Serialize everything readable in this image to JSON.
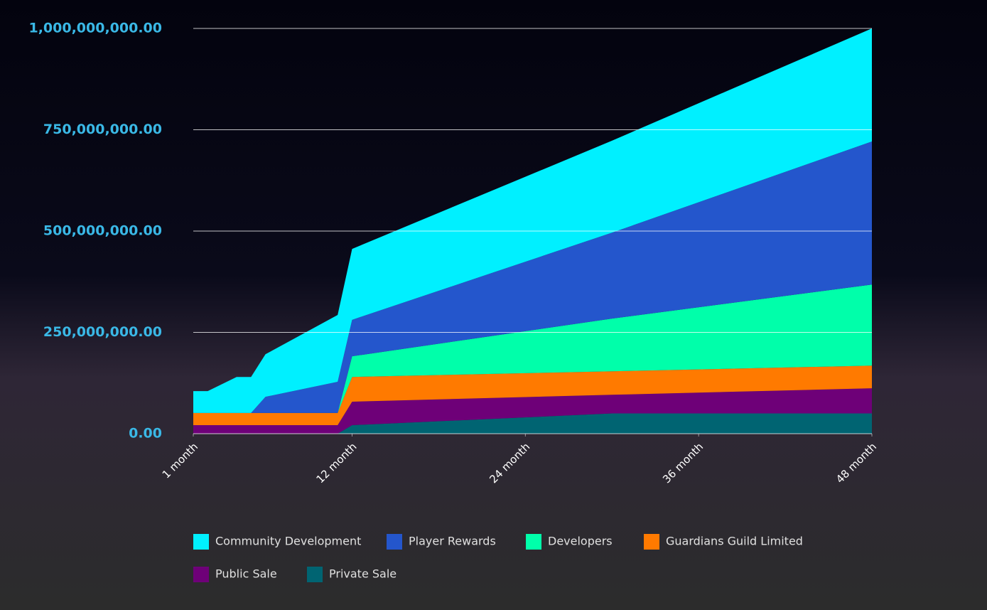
{
  "chart_data": {
    "type": "stacked_area",
    "x": [
      1,
      2,
      4,
      5,
      6,
      11,
      12,
      30,
      48
    ],
    "xlim": [
      1,
      48
    ],
    "xticks": [
      {
        "value": 1,
        "label": "1 month"
      },
      {
        "value": 12,
        "label": "12 month"
      },
      {
        "value": 24,
        "label": "24 month"
      },
      {
        "value": 36,
        "label": "36 month"
      },
      {
        "value": 48,
        "label": "48 month"
      }
    ],
    "ylim": [
      0,
      1000000000
    ],
    "yticks": [
      {
        "value": 0,
        "label": "0.00"
      },
      {
        "value": 250000000,
        "label": "250,000,000.00"
      },
      {
        "value": 500000000,
        "label": "500,000,000.00"
      },
      {
        "value": 750000000,
        "label": "750,000,000.00"
      },
      {
        "value": 1000000000,
        "label": "1,000,000,000.00"
      }
    ],
    "grid": true,
    "series": [
      {
        "name": "Community Development",
        "color": "#00f0ff",
        "values": [
          54000000,
          54000000,
          89000000,
          89000000,
          105000000,
          165000000,
          175000000,
          227000000,
          279000000
        ]
      },
      {
        "name": "Player Rewards",
        "color": "#2456cc",
        "values": [
          0,
          0,
          0,
          0,
          40000000,
          77000000,
          90000000,
          212000000,
          353000000
        ]
      },
      {
        "name": "Developers",
        "color": "#00ffaa",
        "values": [
          0,
          0,
          0,
          0,
          0,
          0,
          51000000,
          130000000,
          200000000
        ]
      },
      {
        "name": "Guardians Guild Limited",
        "color": "#ff7a00",
        "values": [
          30000000,
          30000000,
          30000000,
          30000000,
          30000000,
          30000000,
          61000000,
          58000000,
          56000000
        ]
      },
      {
        "name": "Public Sale",
        "color": "#6e0078",
        "values": [
          21000000,
          21000000,
          21000000,
          21000000,
          21000000,
          21000000,
          58000000,
          46000000,
          62000000
        ]
      },
      {
        "name": "Private Sale",
        "color": "#006472",
        "values": [
          0,
          0,
          0,
          0,
          0,
          0,
          21000000,
          50000000,
          50000000
        ]
      }
    ]
  }
}
